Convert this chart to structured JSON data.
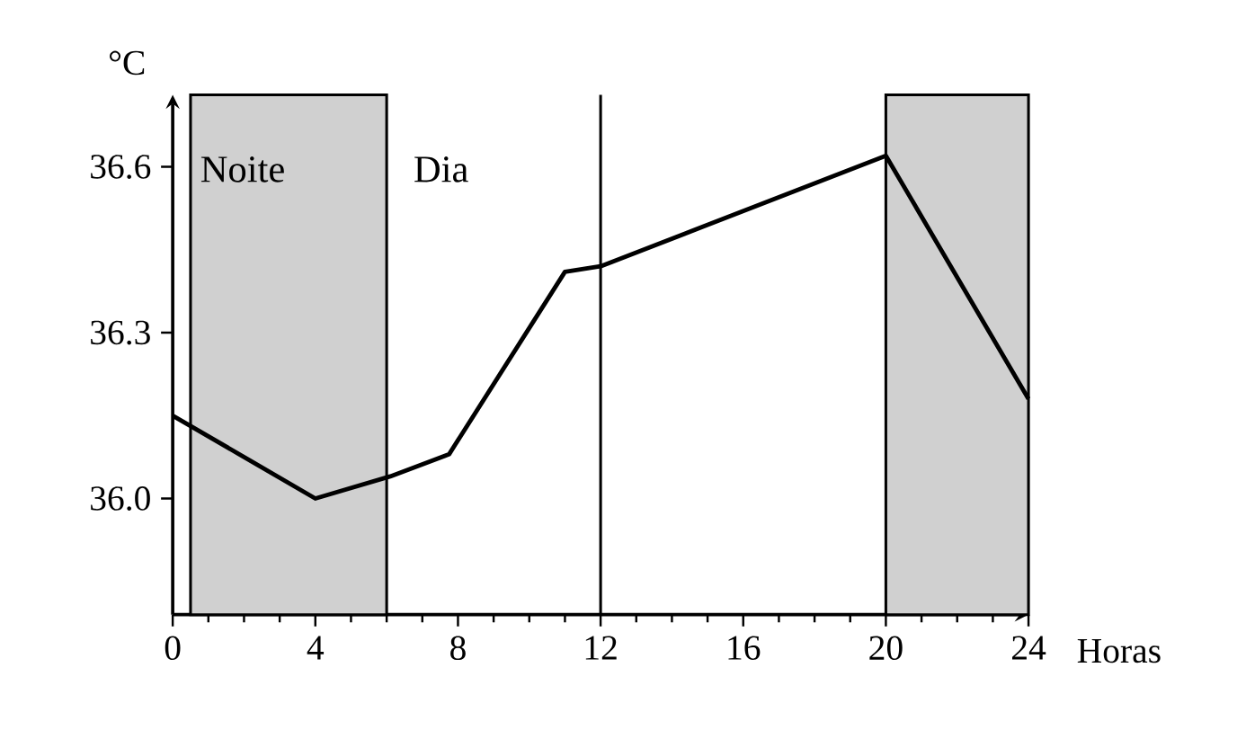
{
  "chart_data": {
    "type": "line",
    "xlabel": "Horas",
    "ylabel": "°C",
    "x": [
      0,
      4,
      6.1,
      7.75,
      11,
      12,
      20,
      24
    ],
    "values": [
      36.15,
      36.0,
      36.04,
      36.08,
      36.41,
      36.42,
      36.62,
      36.18
    ],
    "color": "#000000",
    "marker": "none",
    "line_style": "solid",
    "xlim": [
      0,
      24
    ],
    "ylim": [
      35.79,
      36.73
    ],
    "xticks": [
      0,
      4,
      8,
      12,
      16,
      20,
      24
    ],
    "yticks": [
      {
        "value": 36.0,
        "label": "36.0"
      },
      36.3,
      36.6
    ],
    "ref_lines": [
      {
        "axis": "x",
        "value": 12,
        "color": "#000000"
      }
    ],
    "bands": [
      {
        "axis": "x",
        "from": 0.5,
        "to": 6,
        "label": "Noite",
        "color": "#d0d0d0"
      },
      {
        "axis": "x",
        "from": 20,
        "to": 24,
        "label": null,
        "color": "#d0d0d0"
      }
    ],
    "annotations": [
      "Dia"
    ],
    "grid": false
  }
}
